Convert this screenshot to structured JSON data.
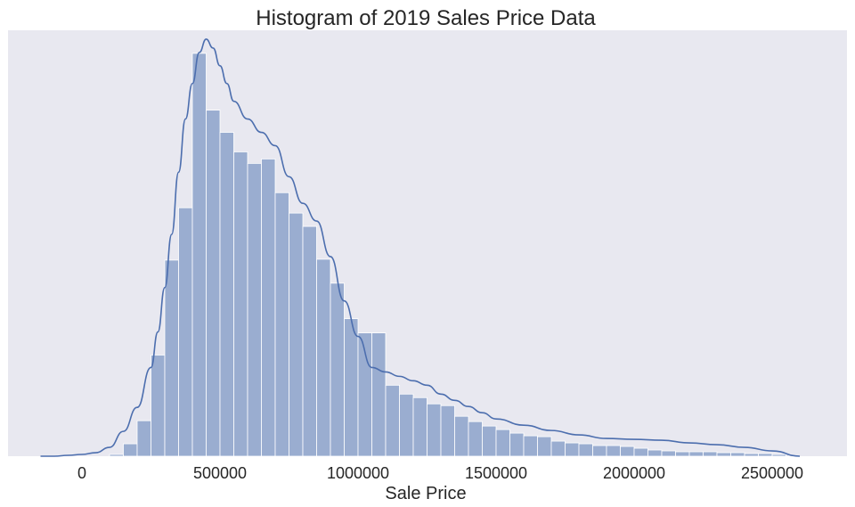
{
  "chart_data": {
    "type": "bar",
    "subtype": "histogram-with-kde",
    "title": "Histogram of 2019 Sales Price Data",
    "xlabel": "Sale Price",
    "ylabel": "",
    "xlim": [
      -150000,
      2650000
    ],
    "x_ticks": [
      0,
      500000,
      1000000,
      1500000,
      2000000,
      2500000
    ],
    "x_tick_labels": [
      "0",
      "500000",
      "1000000",
      "1500000",
      "2000000",
      "2500000"
    ],
    "y_ticks_visible": false,
    "grid": false,
    "background": "#e8e8f0",
    "bar_color": "#4c72b0",
    "bar_opacity": 0.5,
    "line_color": "#4c6eae",
    "bin_start": 100000,
    "bin_width": 50000,
    "bin_counts": [
      2,
      14,
      40,
      114,
      221,
      280,
      454,
      390,
      365,
      343,
      330,
      335,
      297,
      274,
      259,
      222,
      195,
      155,
      139,
      139,
      80,
      70,
      66,
      59,
      57,
      45,
      39,
      34,
      30,
      26,
      23,
      22,
      17,
      15,
      14,
      12,
      12,
      11,
      9,
      7,
      6,
      5,
      5,
      5,
      4,
      4,
      3,
      3,
      2
    ],
    "kde": {
      "x": [
        -150000,
        -100000,
        -50000,
        0,
        50000,
        100000,
        150000,
        200000,
        250000,
        275000,
        300000,
        325000,
        350000,
        375000,
        400000,
        425000,
        450000,
        475000,
        500000,
        525000,
        550000,
        600000,
        650000,
        700000,
        750000,
        800000,
        850000,
        900000,
        950000,
        1000000,
        1050000,
        1100000,
        1150000,
        1200000,
        1250000,
        1300000,
        1350000,
        1400000,
        1450000,
        1500000,
        1600000,
        1700000,
        1800000,
        1900000,
        2000000,
        2100000,
        2200000,
        2300000,
        2400000,
        2500000,
        2600000
      ],
      "y": [
        0,
        0,
        1,
        2,
        4,
        10,
        28,
        55,
        100,
        140,
        190,
        250,
        320,
        380,
        420,
        455,
        470,
        460,
        440,
        420,
        400,
        380,
        365,
        350,
        315,
        285,
        265,
        225,
        175,
        135,
        100,
        95,
        90,
        85,
        80,
        70,
        63,
        56,
        49,
        42,
        35,
        29,
        24,
        20,
        19,
        18,
        15,
        13,
        10,
        6,
        0
      ]
    }
  }
}
